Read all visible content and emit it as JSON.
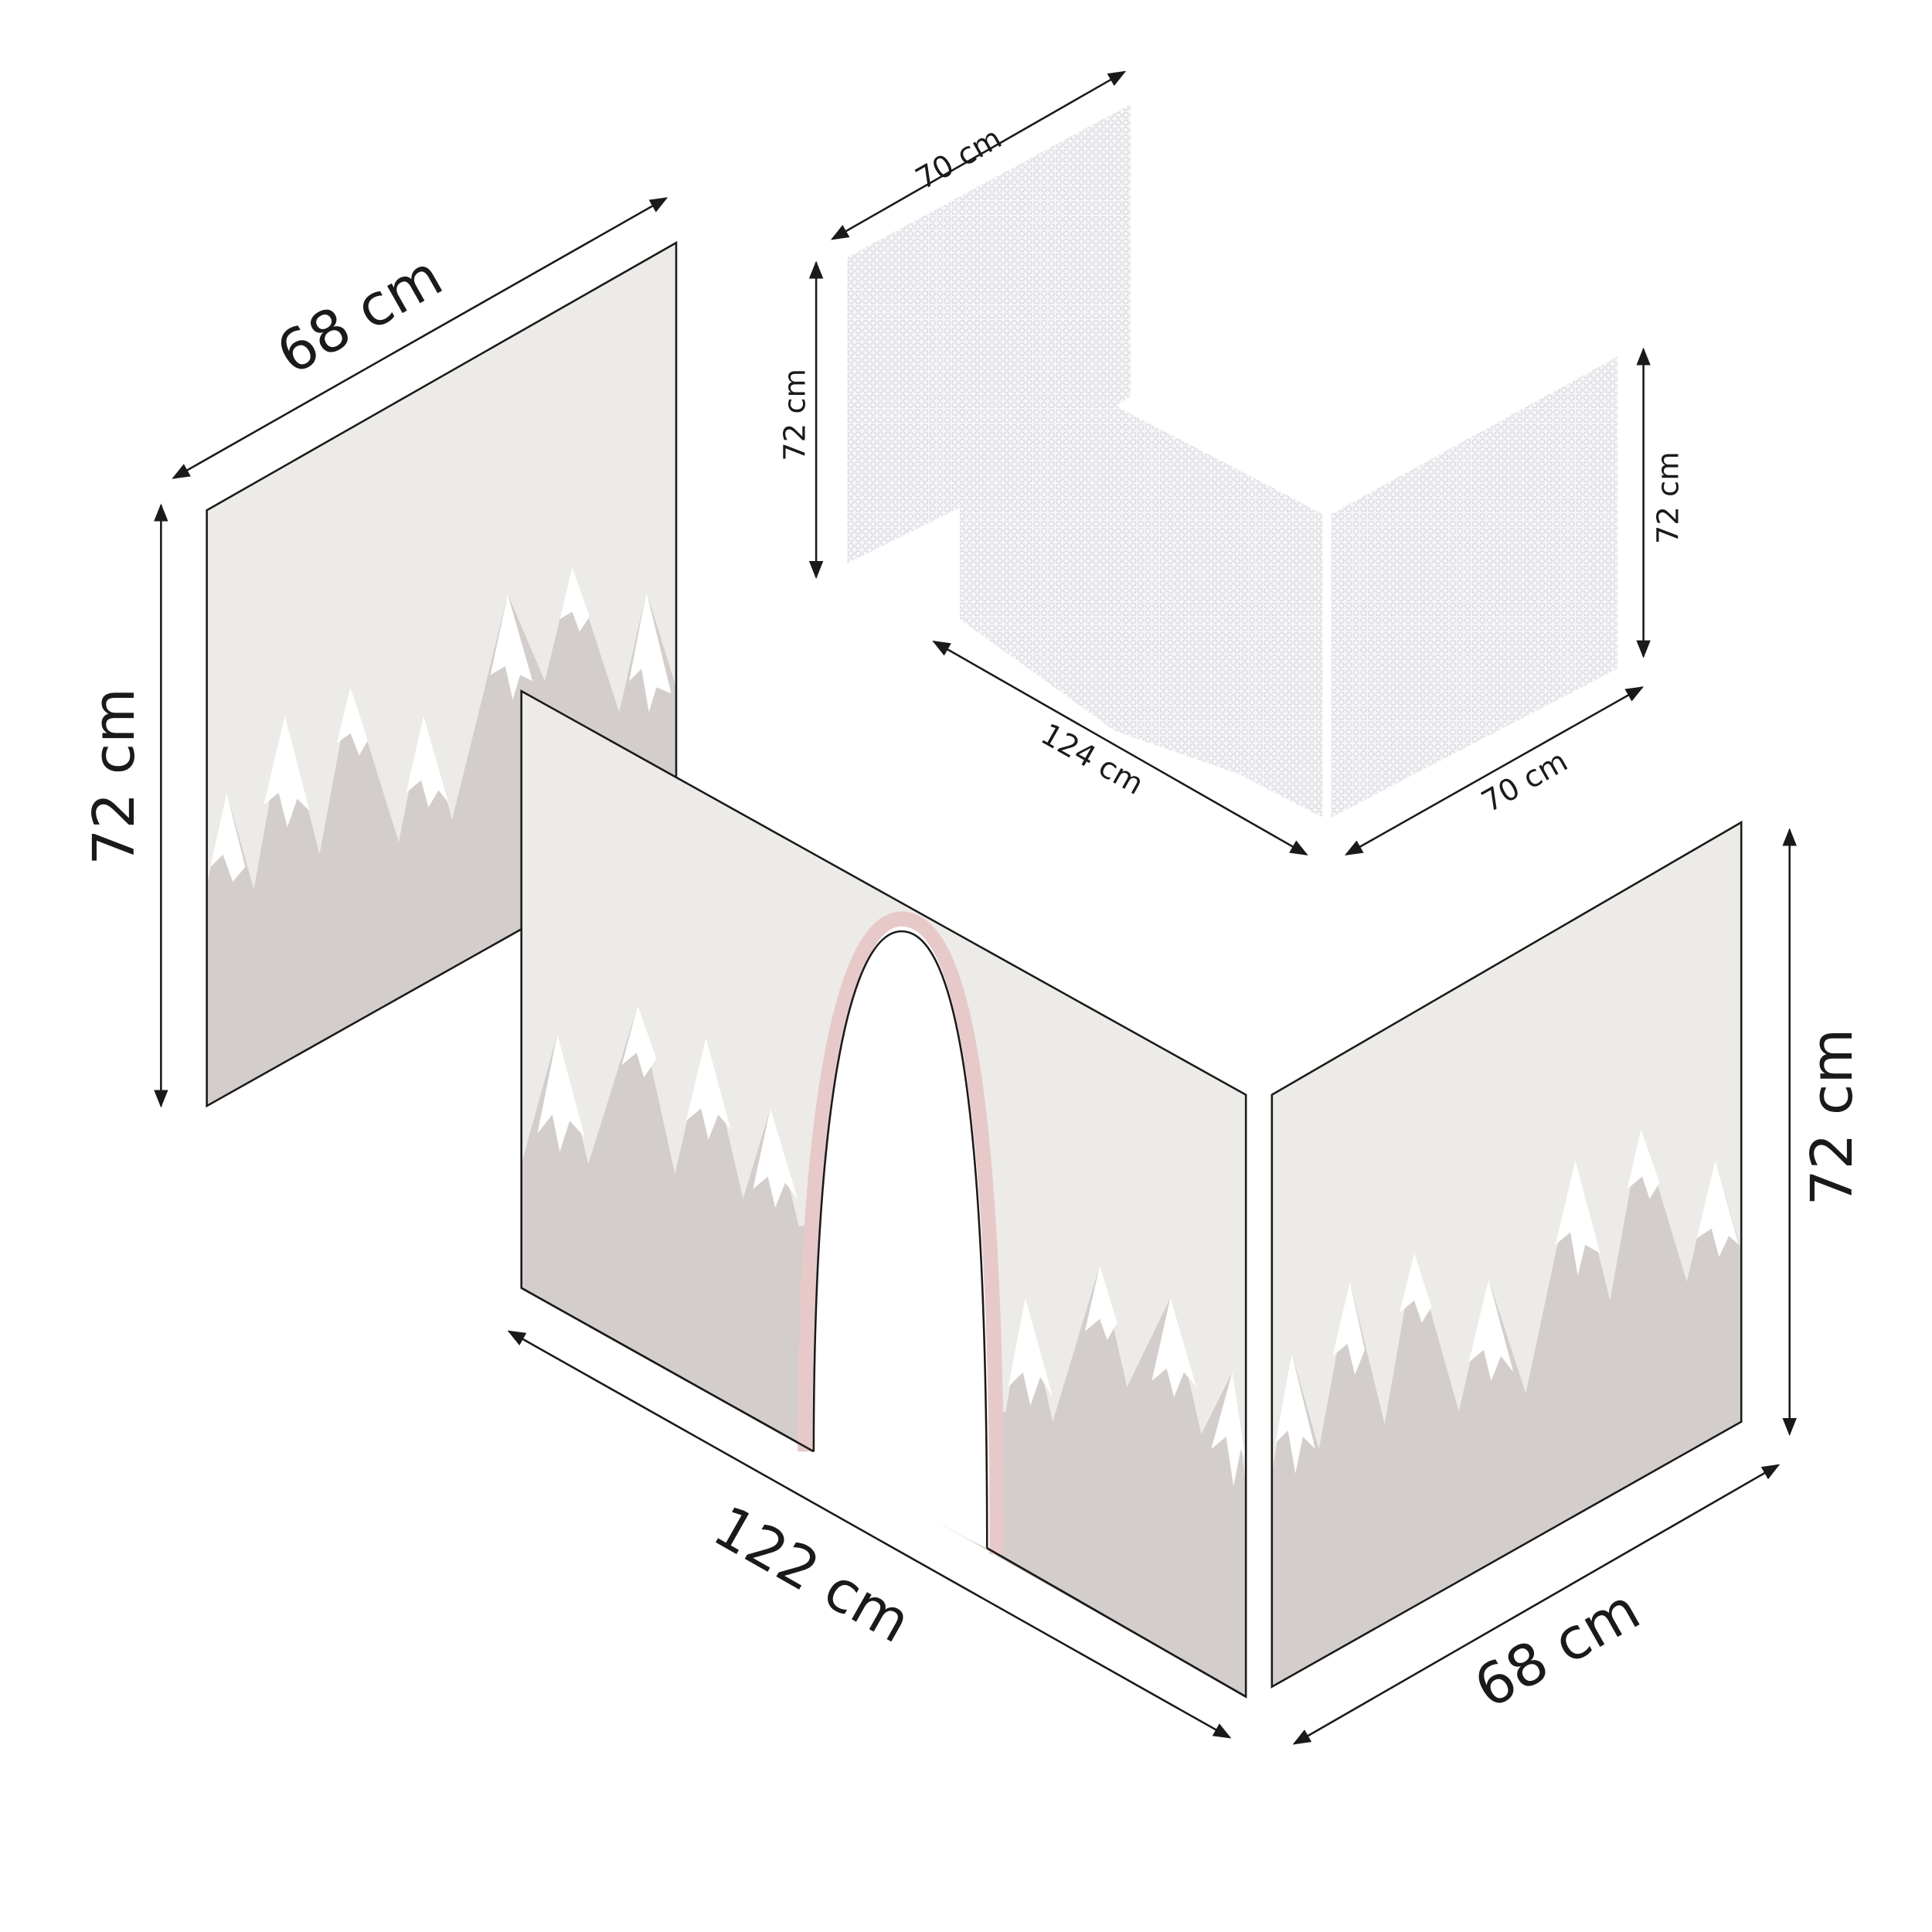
{
  "diagram": {
    "colors": {
      "panel_background": "#ecebe7",
      "mountain": "#d3cecb",
      "snow": "#ffffff",
      "arch_trim": "#e8c9c9",
      "mesh": "#e9e9ec",
      "outline": "#1a1a1a"
    },
    "panels": {
      "left_side": {
        "width_label": "68 cm",
        "height_label": "72 cm"
      },
      "front": {
        "width_label": "122 cm"
      },
      "right_side": {
        "width_label": "68 cm",
        "height_label": "72 cm"
      }
    },
    "mesh_curtain": {
      "left_width_label": "70 cm",
      "left_height_label": "72 cm",
      "back_width_label": "124 cm",
      "right_width_label": "70 cm",
      "right_height_label": "72 cm"
    }
  }
}
